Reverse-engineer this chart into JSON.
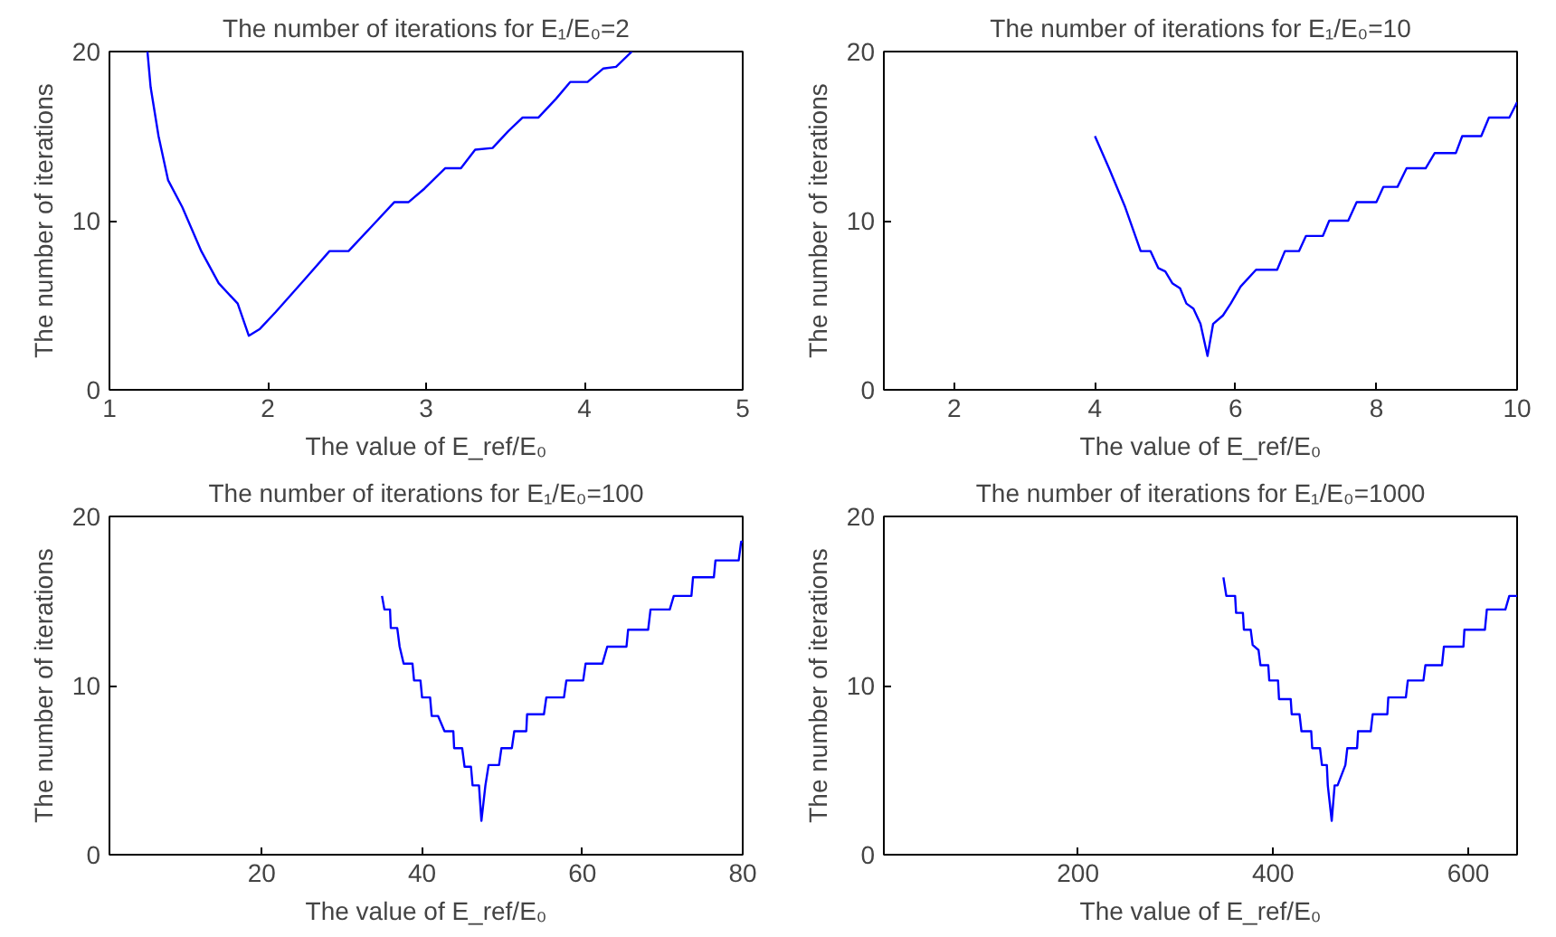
{
  "chart_data": [
    {
      "type": "line",
      "title": "The number of iterations for E₁/E₀=2",
      "xlabel": "The value of E_ref/E₀",
      "ylabel": "The number of iterations",
      "xlim": [
        1,
        5
      ],
      "ylim": [
        0,
        20
      ],
      "xticks": [
        1,
        2,
        3,
        4,
        5
      ],
      "yticks": [
        0,
        10,
        20
      ],
      "grid": false,
      "series": [
        {
          "color": "#0000ff",
          "x": [
            1.24,
            1.26,
            1.31,
            1.37,
            1.46,
            1.58,
            1.69,
            1.81,
            1.88,
            1.95,
            2.05,
            2.23,
            2.39,
            2.51,
            2.65,
            2.8,
            2.89,
            2.99,
            3.12,
            3.22,
            3.31,
            3.42,
            3.52,
            3.61,
            3.71,
            3.82,
            3.91,
            4.02,
            4.12,
            4.2,
            4.3
          ],
          "values": [
            20,
            17.9,
            15,
            12.4,
            10.8,
            8.2,
            6.3,
            5.1,
            3.2,
            3.6,
            4.6,
            6.5,
            8.2,
            8.2,
            9.6,
            11.1,
            11.1,
            11.9,
            13.1,
            13.1,
            14.2,
            14.3,
            15.3,
            16.1,
            16.1,
            17.2,
            18.2,
            18.2,
            19,
            19.1,
            20
          ]
        }
      ]
    },
    {
      "type": "line",
      "title": "The number of iterations for E₁/E₀=10",
      "xlabel": "The value of E_ref/E₀",
      "ylabel": "The number of iterations",
      "xlim": [
        1,
        10
      ],
      "ylim": [
        0,
        20
      ],
      "xticks": [
        2,
        4,
        6,
        8,
        10
      ],
      "yticks": [
        0,
        10,
        20
      ],
      "grid": false,
      "series": [
        {
          "color": "#0000ff",
          "x": [
            4,
            4.2,
            4.43,
            4.65,
            4.79,
            4.9,
            5.0,
            5.1,
            5.21,
            5.3,
            5.4,
            5.5,
            5.6,
            5.68,
            5.82,
            5.93,
            6.07,
            6.29,
            6.59,
            6.7,
            6.9,
            7.0,
            7.24,
            7.33,
            7.6,
            7.72,
            8.0,
            8.1,
            8.3,
            8.43,
            8.7,
            8.83,
            9.13,
            9.22,
            9.49,
            9.6,
            9.89,
            10
          ],
          "values": [
            15,
            13.1,
            10.8,
            8.2,
            8.2,
            7.2,
            7.0,
            6.3,
            6.0,
            5.1,
            4.8,
            3.9,
            2.0,
            3.9,
            4.4,
            5.1,
            6.1,
            7.1,
            7.1,
            8.2,
            8.2,
            9.1,
            9.1,
            10,
            10,
            11.1,
            11.1,
            12,
            12,
            13.1,
            13.1,
            14,
            14,
            15,
            15,
            16.1,
            16.1,
            17
          ]
        }
      ]
    },
    {
      "type": "line",
      "title": "The number of iterations for E₁/E₀=100",
      "xlabel": "The value of E_ref/E₀",
      "ylabel": "The number of iterations",
      "xlim": [
        1,
        80
      ],
      "ylim": [
        0,
        20
      ],
      "xticks": [
        20,
        40,
        60,
        80
      ],
      "yticks": [
        0,
        10,
        20
      ],
      "grid": false,
      "series": [
        {
          "color": "#0000ff",
          "x": [
            35.0,
            35.3,
            36.0,
            36.1,
            36.9,
            37.2,
            37.7,
            38.8,
            39.0,
            39.8,
            40.0,
            41.0,
            41.2,
            42.0,
            42.8,
            43.9,
            44.0,
            45.0,
            45.3,
            46.1,
            46.3,
            47.1,
            47.4,
            47.9,
            48.3,
            49.6,
            49.9,
            51.2,
            51.5,
            53.0,
            53.1,
            55.2,
            55.5,
            57.7,
            58.0,
            60.1,
            60.4,
            62.5,
            63.1,
            65.5,
            65.7,
            68.2,
            68.5,
            70.9,
            71.4,
            73.6,
            73.8,
            76.4,
            76.6,
            79.5,
            79.8,
            80
          ],
          "values": [
            15.3,
            14.5,
            14.5,
            13.4,
            13.4,
            12.3,
            11.3,
            11.3,
            10.3,
            10.3,
            9.3,
            9.3,
            8.2,
            8.2,
            7.3,
            7.3,
            6.3,
            6.3,
            5.2,
            5.2,
            4.1,
            4.1,
            2.0,
            4.1,
            5.3,
            5.3,
            6.3,
            6.3,
            7.3,
            7.3,
            8.3,
            8.3,
            9.3,
            9.3,
            10.3,
            10.3,
            11.3,
            11.3,
            12.3,
            12.3,
            13.3,
            13.3,
            14.5,
            14.5,
            15.3,
            15.3,
            16.4,
            16.4,
            17.4,
            17.4,
            18.5,
            18.5
          ]
        }
      ]
    },
    {
      "type": "line",
      "title": "The number of iterations for E₁/E₀=1000",
      "xlabel": "The value of E_ref/E₀",
      "ylabel": "The number of iterations",
      "xlim": [
        1,
        650
      ],
      "ylim": [
        0,
        20
      ],
      "xticks": [
        200,
        400,
        600
      ],
      "yticks": [
        0,
        10,
        20
      ],
      "grid": false,
      "series": [
        {
          "color": "#0000ff",
          "x": [
            349,
            352,
            361,
            362,
            369,
            370,
            377,
            379,
            385,
            387,
            395,
            396,
            405,
            406,
            418,
            419,
            427,
            429,
            439,
            440,
            448,
            450,
            455,
            456,
            460,
            463,
            466,
            474,
            476,
            486,
            487,
            500,
            502,
            517,
            518,
            536,
            538,
            554,
            556,
            573,
            575,
            595,
            596,
            617,
            619,
            638,
            642,
            650
          ],
          "values": [
            16.4,
            15.3,
            15.3,
            14.3,
            14.3,
            13.3,
            13.3,
            12.4,
            12.1,
            11.2,
            11.2,
            10.3,
            10.3,
            9.2,
            9.2,
            8.3,
            8.3,
            7.3,
            7.3,
            6.3,
            6.3,
            5.3,
            5.3,
            4.1,
            2.0,
            4.1,
            4.1,
            5.3,
            6.3,
            6.3,
            7.3,
            7.3,
            8.3,
            8.3,
            9.3,
            9.3,
            10.3,
            10.3,
            11.2,
            11.2,
            12.3,
            12.3,
            13.3,
            13.3,
            14.5,
            14.5,
            15.3,
            15.3
          ]
        }
      ]
    }
  ]
}
